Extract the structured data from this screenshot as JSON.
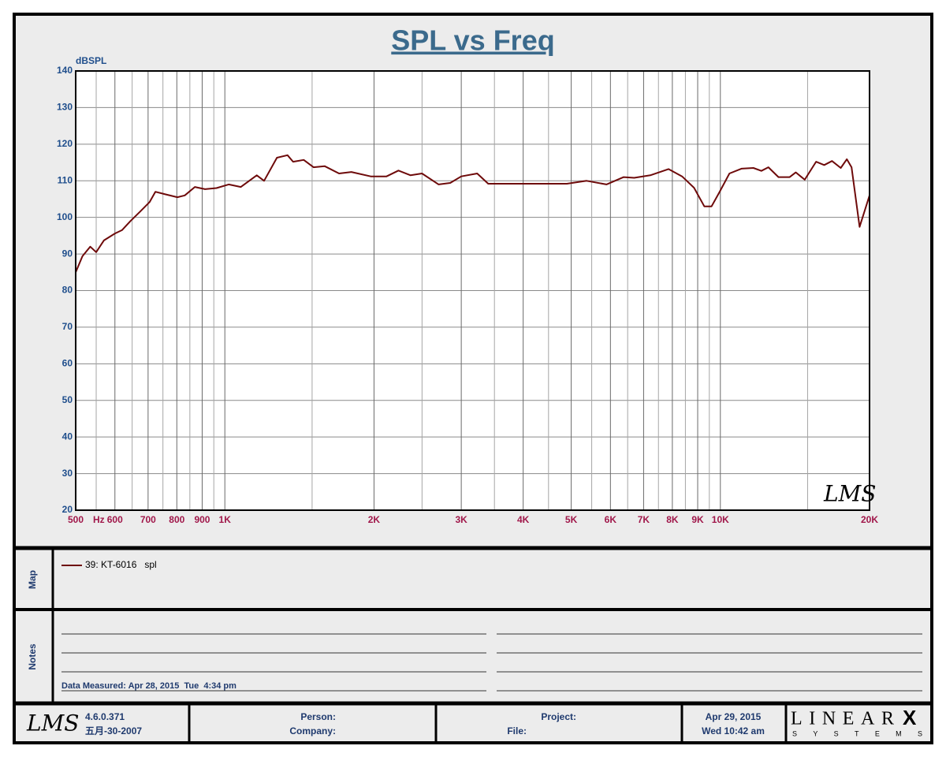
{
  "chart_data": {
    "type": "line",
    "title": "SPL vs Freq",
    "ylabel": "dBSPL",
    "xunit": "Hz",
    "watermark": "LMS",
    "xscale": "log",
    "grid": true,
    "xlim": [
      500,
      20000
    ],
    "xticks": [
      500,
      600,
      700,
      800,
      900,
      {
        "value": 1000,
        "label": "1K"
      },
      {
        "value": 2000,
        "label": "2K"
      },
      {
        "value": 3000,
        "label": "3K"
      },
      {
        "value": 4000,
        "label": "4K"
      },
      {
        "value": 5000,
        "label": "5K"
      },
      {
        "value": 6000,
        "label": "6K"
      },
      {
        "value": 7000,
        "label": "7K"
      },
      {
        "value": 8000,
        "label": "8K"
      },
      {
        "value": 9000,
        "label": "9K"
      },
      {
        "value": 10000,
        "label": "10K"
      },
      {
        "value": 20000,
        "label": "20K"
      }
    ],
    "xminor": [
      550,
      650,
      750,
      850,
      950,
      1500,
      2500,
      3500,
      4500,
      5500,
      6500,
      7500,
      8500,
      9500,
      15000
    ],
    "ylim": [
      20,
      140
    ],
    "yticks": [
      20,
      30,
      40,
      50,
      60,
      70,
      80,
      90,
      100,
      110,
      120,
      130,
      140
    ],
    "x": [
      500,
      516,
      535,
      550,
      570,
      600,
      620,
      645,
      675,
      705,
      724,
      758,
      802,
      830,
      870,
      912,
      962,
      1018,
      1077,
      1160,
      1200,
      1274,
      1338,
      1373,
      1443,
      1510,
      1590,
      1700,
      1800,
      1970,
      2120,
      2240,
      2370,
      2500,
      2700,
      2850,
      3000,
      3230,
      3400,
      3660,
      3940,
      4400,
      4900,
      5370,
      5890,
      6380,
      6700,
      7220,
      7860,
      8370,
      8850,
      9280,
      9600,
      9950,
      10430,
      11030,
      11660,
      12100,
      12500,
      13100,
      13800,
      14200,
      14800,
      15600,
      16200,
      16800,
      17500,
      18000,
      18400,
      19100,
      20000
    ],
    "series": [
      {
        "name": "39: KT-6016   spl",
        "color": "#6e0a0a",
        "values": [
          85,
          89.4,
          92,
          90.5,
          93.7,
          95.6,
          96.5,
          99,
          101.6,
          104.2,
          107,
          106.3,
          105.5,
          106,
          108.3,
          107.7,
          108,
          109,
          108.3,
          111.5,
          110,
          116.3,
          117,
          115.2,
          115.7,
          113.7,
          114,
          112,
          112.4,
          111.2,
          111.2,
          112.8,
          111.5,
          112,
          109,
          109.4,
          111.2,
          112,
          109.2,
          109.2,
          109.2,
          109.2,
          109.2,
          110,
          109,
          111,
          110.8,
          111.5,
          113.2,
          111.2,
          108.1,
          103,
          103,
          106.8,
          112,
          113.3,
          113.5,
          112.7,
          113.7,
          111,
          111,
          112.3,
          110.3,
          115.2,
          114.3,
          115.4,
          113.5,
          115.9,
          113.7,
          97.4,
          106
        ]
      }
    ]
  },
  "map": {
    "label": "Map"
  },
  "notes": {
    "label": "Notes",
    "measured": "Data Measured: Apr 28, 2015  Tue  4:34 pm"
  },
  "footer": {
    "logo": "LMS",
    "version": "4.6.0.371",
    "build_date": "五月-30-2007",
    "person": "Person:",
    "company": "Company:",
    "project": "Project:",
    "file": "File:",
    "date": "Apr 29, 2015",
    "time": "Wed 10:42 am",
    "brand": "LINEAR",
    "brand_x": "X",
    "brand_sub": "SYSTEMS"
  }
}
